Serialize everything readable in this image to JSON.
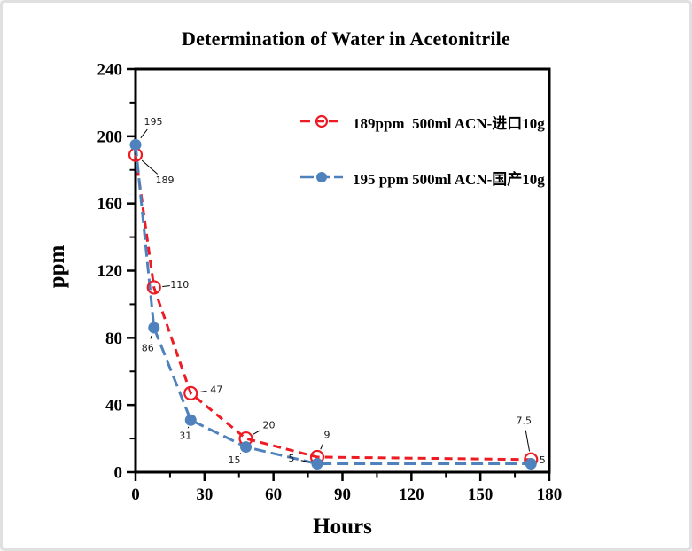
{
  "window": {
    "background": "#ffffff",
    "border_color": "#e0e0e0"
  },
  "chart_data": {
    "type": "line",
    "title": "Determination of Water in Acetonitrile",
    "xlabel": "Hours",
    "ylabel": "ppm",
    "xlim": [
      0,
      180
    ],
    "ylim": [
      0,
      240
    ],
    "x_major_ticks": [
      0,
      30,
      60,
      90,
      120,
      150,
      180
    ],
    "x_minor_ticks": [
      15,
      45,
      75,
      105,
      135,
      165
    ],
    "y_major_ticks": [
      0,
      40,
      80,
      120,
      160,
      200,
      240
    ],
    "y_minor_ticks": [
      20,
      60,
      100,
      140,
      180,
      220
    ],
    "grid": false,
    "legend_position": "inside-top-right",
    "axis_color": "#000000",
    "series": [
      {
        "name": "189ppm  500ml ACN-进口10g",
        "color": "#ed1c24",
        "line_style": "dashed",
        "marker": "open-circle",
        "points": [
          {
            "x": 0,
            "y": 189,
            "label": "189",
            "label_dx": 33,
            "label_dy": 29
          },
          {
            "x": 8,
            "y": 110,
            "label": "110",
            "label_dx": 29,
            "label_dy": -3
          },
          {
            "x": 24,
            "y": 47,
            "label": "47",
            "label_dx": 29,
            "label_dy": -4
          },
          {
            "x": 48,
            "y": 20,
            "label": "20",
            "label_dx": 26,
            "label_dy": -15
          },
          {
            "x": 79,
            "y": 9,
            "label": "9",
            "label_dx": 11,
            "label_dy": -25
          },
          {
            "x": 172,
            "y": 7.5,
            "label": "7.5",
            "label_dx": -8,
            "label_dy": -44
          }
        ]
      },
      {
        "name": "195 ppm 500ml ACN-国产10g",
        "color": "#4f81bd",
        "line_style": "dashed",
        "marker": "filled-circle",
        "points": [
          {
            "x": 0,
            "y": 195,
            "label": "195",
            "label_dx": 20,
            "label_dy": -26
          },
          {
            "x": 8,
            "y": 86,
            "label": "86",
            "label_dx": -7,
            "label_dy": 23
          },
          {
            "x": 24,
            "y": 31,
            "label": "31",
            "label_dx": -6,
            "label_dy": 18
          },
          {
            "x": 48,
            "y": 15,
            "label": "15",
            "label_dx": -13,
            "label_dy": 15
          },
          {
            "x": 79,
            "y": 5,
            "label": "5",
            "label_dx": -29,
            "label_dy": -6
          },
          {
            "x": 172,
            "y": 5,
            "label": "5",
            "label_dx": 13,
            "label_dy": -4
          }
        ]
      }
    ]
  }
}
